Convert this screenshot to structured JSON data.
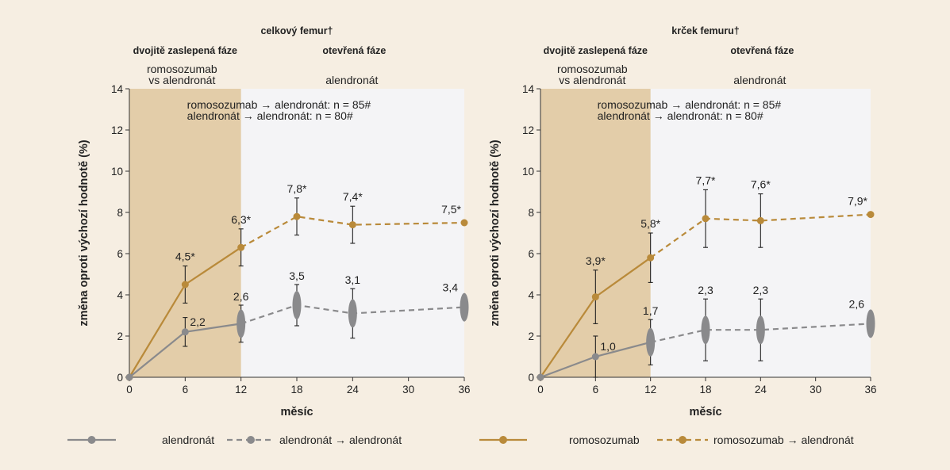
{
  "legend": {
    "items": [
      {
        "label": "alendronát",
        "style": "solid",
        "color": "#8a8a8c"
      },
      {
        "label": "alendronát → alendronát",
        "style": "dashed",
        "color": "#8a8a8c"
      },
      {
        "label": "romosozumab",
        "style": "solid",
        "color": "#b98a3a"
      },
      {
        "label": "romosozumab → alendronát",
        "style": "dashed",
        "color": "#b98a3a"
      }
    ]
  },
  "colors": {
    "background": "#f6eee2",
    "plot_background": "#f4f4f6",
    "blinded_phase_band": "#e3cda9",
    "romosozumab": "#b98a3a",
    "alendronate": "#8a8a8c"
  },
  "chart_data": [
    {
      "type": "line",
      "title": "celkový femur†",
      "phase_labels": {
        "blinded": "dvojitě zaslepená fáze",
        "open": "otevřená fáze"
      },
      "arm_labels": {
        "blinded_line1": "romosozumab",
        "blinded_line2": "vs alendronát",
        "open": "alendronát"
      },
      "n_labels": [
        "romosozumab → alendronát: n = 85#",
        "alendronát → alendronát: n = 80#"
      ],
      "xlabel": "měsíc",
      "ylabel": "změna oproti výchozí hodnotě (%)",
      "xlim": [
        0,
        36
      ],
      "ylim": [
        0,
        14
      ],
      "xticks": [
        0,
        6,
        12,
        18,
        24,
        30,
        36
      ],
      "yticks": [
        0,
        2,
        4,
        6,
        8,
        10,
        12,
        14
      ],
      "blinded_phase_x": [
        0,
        12
      ],
      "series": [
        {
          "name": "romosozumab → alendronát",
          "color": "#b98a3a",
          "solid_x": [
            0,
            6,
            12
          ],
          "dashed_x": [
            12,
            18,
            24,
            36
          ],
          "x": [
            0,
            6,
            12,
            18,
            24,
            36
          ],
          "y": [
            0,
            4.5,
            6.3,
            7.8,
            7.4,
            7.5
          ],
          "err": [
            0,
            0.9,
            0.9,
            0.9,
            0.9,
            0
          ],
          "labels": [
            "",
            "4,5*",
            "6,3*",
            "7,8*",
            "7,4*",
            "7,5*"
          ],
          "oval": [
            false,
            false,
            false,
            false,
            false,
            false
          ]
        },
        {
          "name": "alendronát → alendronát",
          "color": "#8a8a8c",
          "solid_x": [
            0,
            6,
            12
          ],
          "dashed_x": [
            12,
            18,
            24,
            36
          ],
          "x": [
            0,
            6,
            12,
            18,
            24,
            36
          ],
          "y": [
            0,
            2.2,
            2.6,
            3.5,
            3.1,
            3.4
          ],
          "err": [
            0,
            0.7,
            0.9,
            1.0,
            1.2,
            0
          ],
          "labels": [
            "",
            "2,2",
            "2,6",
            "3,5",
            "3,1",
            "3,4"
          ],
          "oval": [
            false,
            false,
            true,
            true,
            true,
            true
          ]
        }
      ]
    },
    {
      "type": "line",
      "title": "krček femuru†",
      "phase_labels": {
        "blinded": "dvojitě zaslepená fáze",
        "open": "otevřená fáze"
      },
      "arm_labels": {
        "blinded_line1": "romosozumab",
        "blinded_line2": "vs alendronát",
        "open": "alendronát"
      },
      "n_labels": [
        "romosozumab → alendronát: n = 85#",
        "alendronát → alendronát: n = 80#"
      ],
      "xlabel": "měsíc",
      "ylabel": "změna oproti výchozí hodnotě (%)",
      "xlim": [
        0,
        36
      ],
      "ylim": [
        0,
        14
      ],
      "xticks": [
        0,
        6,
        12,
        18,
        24,
        30,
        36
      ],
      "yticks": [
        0,
        2,
        4,
        6,
        8,
        10,
        12,
        14
      ],
      "blinded_phase_x": [
        0,
        12
      ],
      "series": [
        {
          "name": "romosozumab → alendronát",
          "color": "#b98a3a",
          "solid_x": [
            0,
            6,
            12
          ],
          "dashed_x": [
            12,
            18,
            24,
            36
          ],
          "x": [
            0,
            6,
            12,
            18,
            24,
            36
          ],
          "y": [
            0,
            3.9,
            5.8,
            7.7,
            7.6,
            7.9
          ],
          "err": [
            0,
            1.3,
            1.2,
            1.4,
            1.3,
            0
          ],
          "labels": [
            "",
            "3,9*",
            "5,8*",
            "7,7*",
            "7,6*",
            "7,9*"
          ],
          "oval": [
            false,
            false,
            false,
            false,
            false,
            false
          ]
        },
        {
          "name": "alendronát → alendronát",
          "color": "#8a8a8c",
          "solid_x": [
            0,
            6,
            12
          ],
          "dashed_x": [
            12,
            18,
            24,
            36
          ],
          "x": [
            0,
            6,
            12,
            18,
            24,
            36
          ],
          "y": [
            0,
            1.0,
            1.7,
            2.3,
            2.3,
            2.6
          ],
          "err": [
            0,
            1.0,
            1.1,
            1.5,
            1.5,
            0
          ],
          "labels": [
            "",
            "1,0",
            "1,7",
            "2,3",
            "2,3",
            "2,6"
          ],
          "oval": [
            false,
            false,
            true,
            true,
            true,
            true
          ]
        }
      ]
    }
  ]
}
